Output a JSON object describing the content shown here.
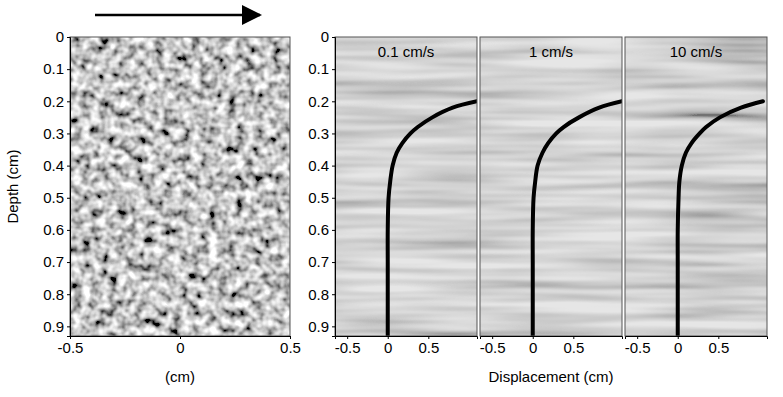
{
  "chart_data": [
    {
      "type": "image",
      "x_label": "(cm)",
      "y_label": "Depth (cm)",
      "xlim": [
        -0.5,
        0.5
      ],
      "xticks": [
        -0.5,
        0,
        0.5
      ],
      "ylim": [
        0,
        0.93
      ],
      "yticks": [
        0,
        0.1,
        0.2,
        0.3,
        0.4,
        0.5,
        0.6,
        0.7,
        0.8,
        0.9
      ]
    },
    {
      "type": "line",
      "title": "0.1 cm/s",
      "series": [
        {
          "color": "#000000",
          "x": [
            1.1,
            0.8,
            0.55,
            0.37,
            0.28,
            0.18,
            0.11,
            0.06,
            0.03,
            0.01,
            0,
            0,
            0,
            0
          ],
          "values": [
            0.2,
            0.22,
            0.25,
            0.28,
            0.3,
            0.33,
            0.36,
            0.4,
            0.45,
            0.5,
            0.6,
            0.7,
            0.8,
            0.93
          ]
        }
      ],
      "xlim": [
        -0.65,
        1.1
      ],
      "xticks": [
        -0.5,
        0,
        0.5
      ],
      "ylim": [
        0,
        0.93
      ],
      "yticks": [
        0,
        0.1,
        0.2,
        0.3,
        0.4,
        0.5,
        0.6,
        0.7,
        0.8,
        0.9
      ]
    },
    {
      "type": "line",
      "title": "1 cm/s",
      "x_label": "Displacement (cm)",
      "tick_labels": "x",
      "series": [
        {
          "color": "#000000",
          "x": [
            1.1,
            0.82,
            0.57,
            0.38,
            0.29,
            0.19,
            0.12,
            0.06,
            0.03,
            0.01,
            0,
            0,
            0,
            0
          ],
          "values": [
            0.2,
            0.22,
            0.25,
            0.28,
            0.3,
            0.33,
            0.36,
            0.4,
            0.45,
            0.5,
            0.6,
            0.7,
            0.8,
            0.93
          ]
        }
      ],
      "xlim": [
        -0.65,
        1.1
      ],
      "xticks": [
        -0.5,
        0,
        0.5
      ],
      "ylim": [
        0,
        0.93
      ]
    },
    {
      "type": "line",
      "title": "10 cm/s",
      "tick_labels": "x",
      "series": [
        {
          "color": "#000000",
          "x": [
            1.05,
            0.78,
            0.52,
            0.35,
            0.27,
            0.17,
            0.1,
            0.05,
            0.02,
            0.01,
            0,
            0,
            0,
            0
          ],
          "values": [
            0.2,
            0.22,
            0.25,
            0.28,
            0.3,
            0.33,
            0.36,
            0.4,
            0.45,
            0.5,
            0.6,
            0.7,
            0.8,
            0.93
          ]
        }
      ],
      "xlim": [
        -0.65,
        1.1
      ],
      "xticks": [
        -0.5,
        0,
        0.5
      ],
      "ylim": [
        0,
        0.93
      ]
    }
  ]
}
